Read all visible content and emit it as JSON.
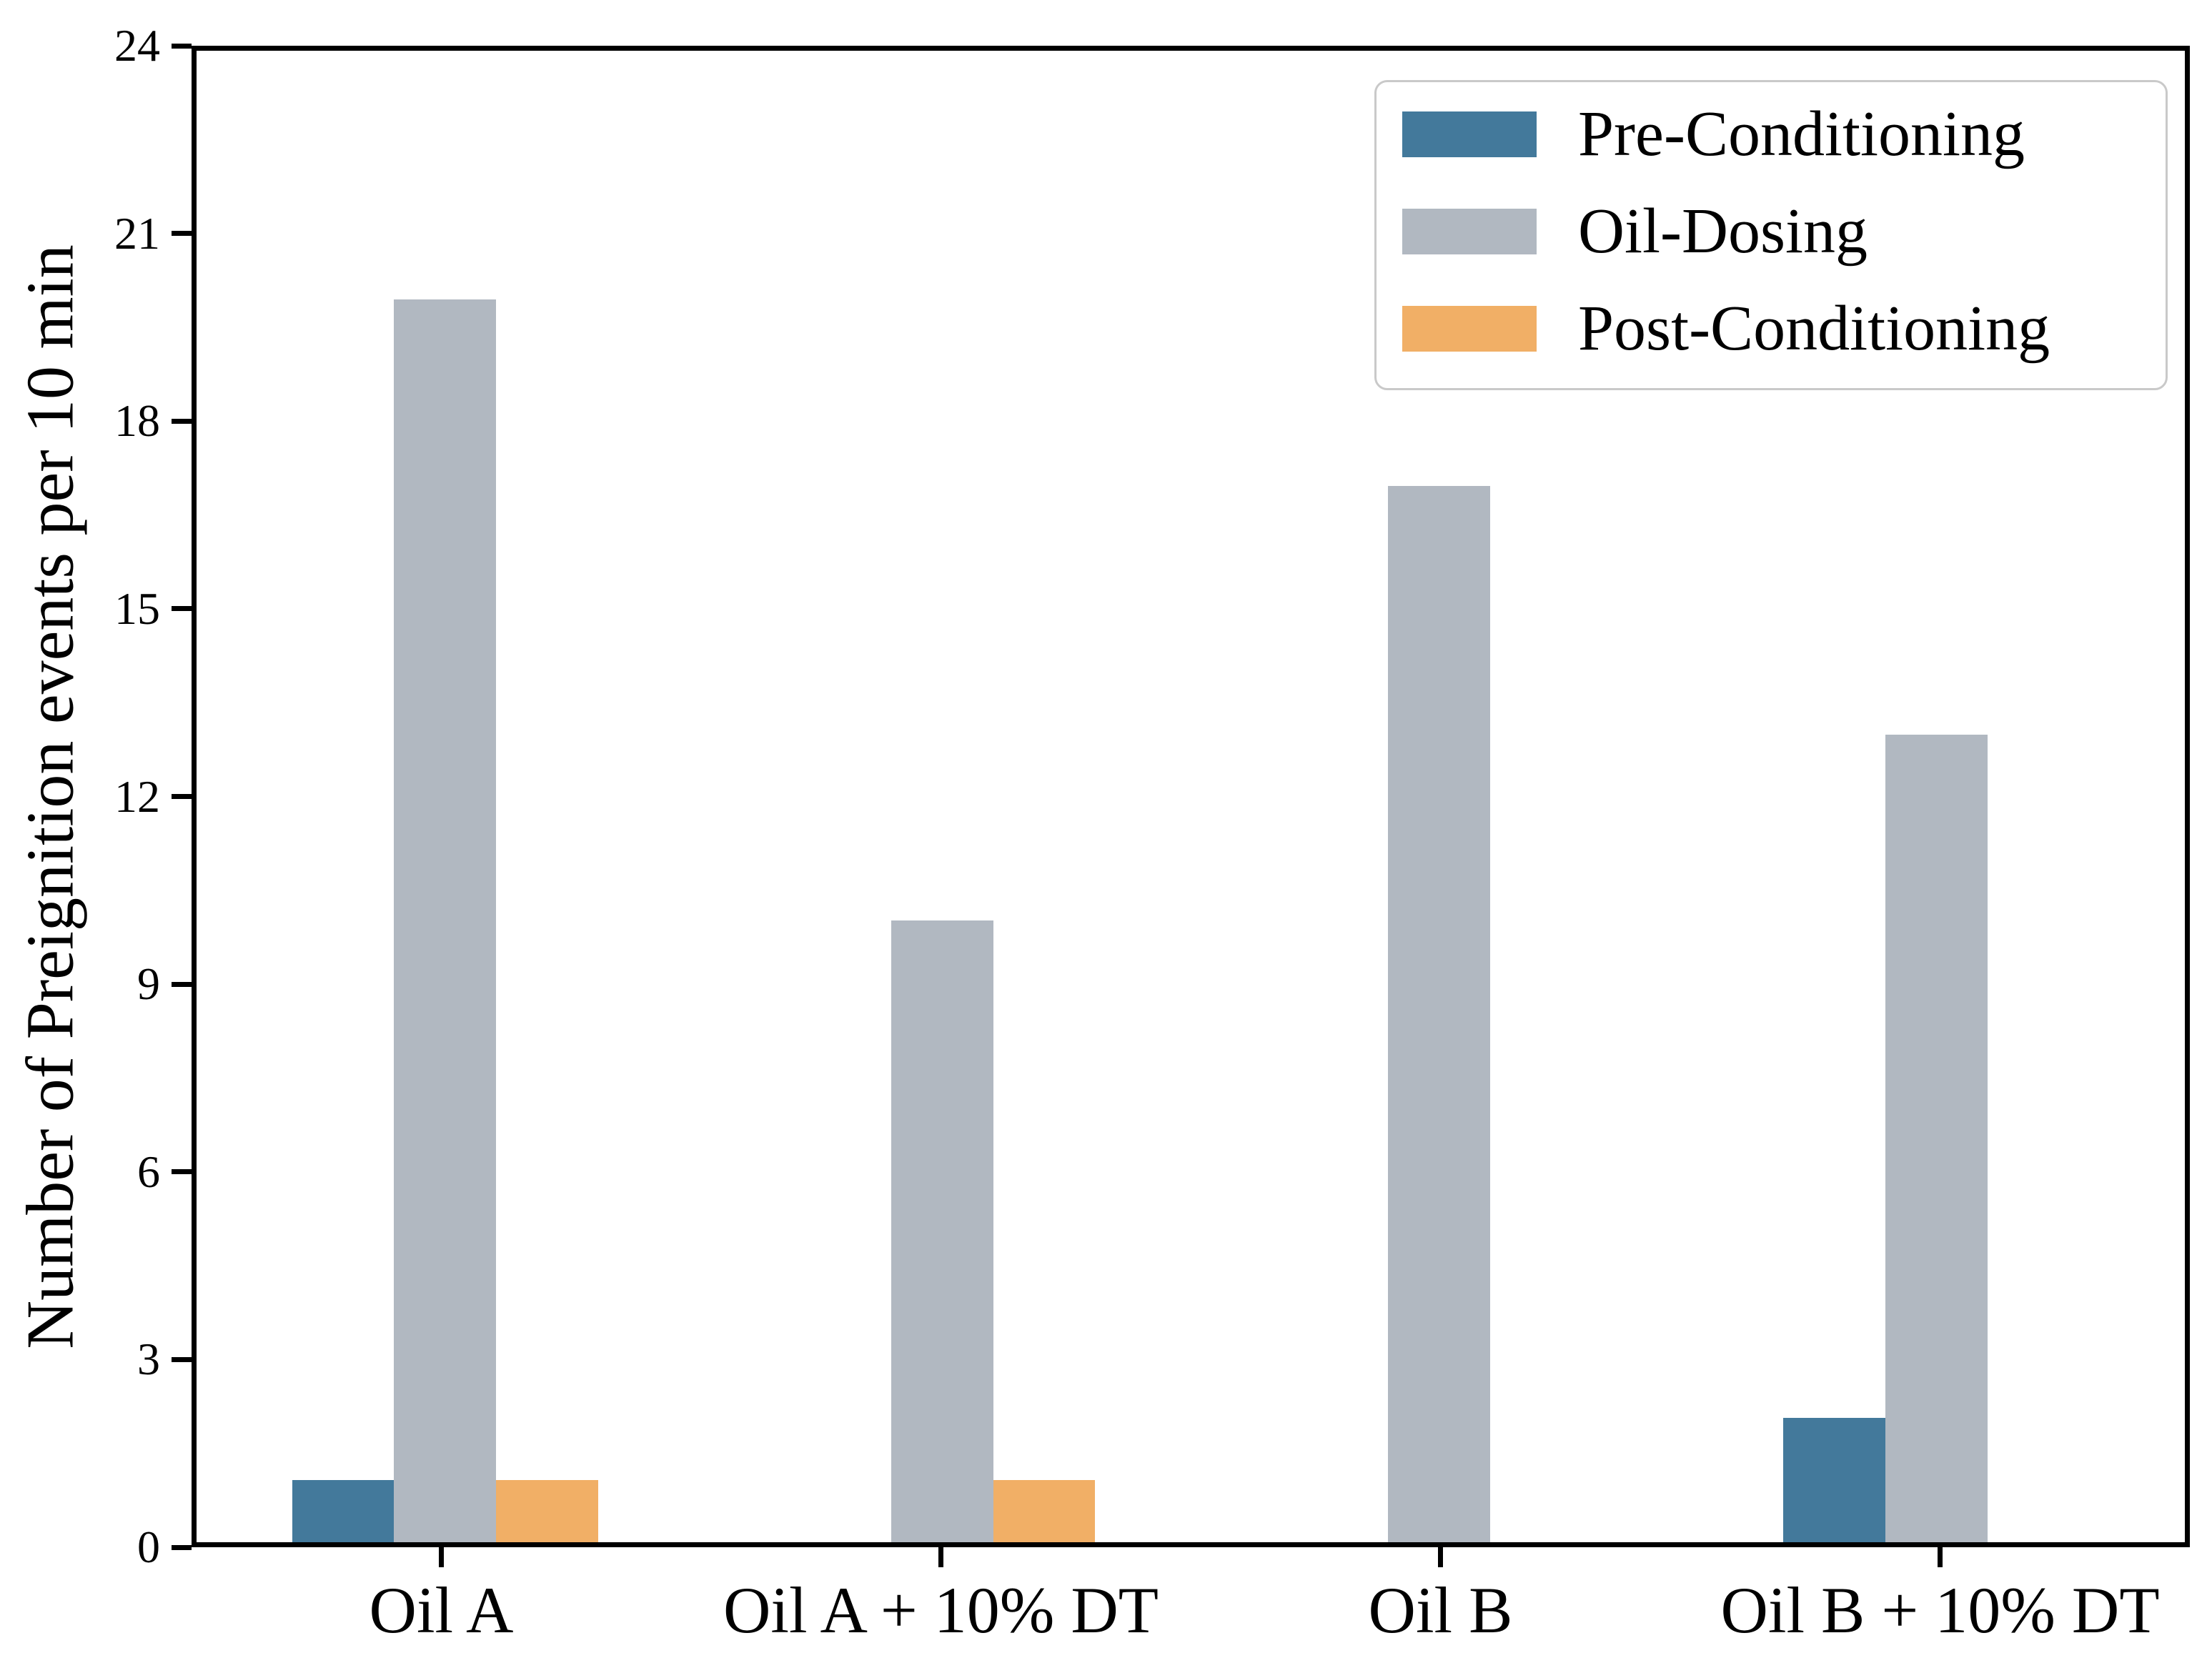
{
  "chart_data": {
    "type": "bar",
    "title": "",
    "xlabel": "",
    "ylabel": "Number of Preignition events per 10 min",
    "categories": [
      "Oil A",
      "Oil A + 10% DT",
      "Oil B",
      "Oil B + 10% DT"
    ],
    "series": [
      {
        "name": "Pre-Conditioning",
        "color": "#43799b",
        "values": [
          1,
          0,
          0,
          2
        ]
      },
      {
        "name": "Oil-Dosing",
        "color": "#b1b8c1",
        "values": [
          20,
          10,
          17,
          13
        ]
      },
      {
        "name": "Post-Conditioning",
        "color": "#f1af66",
        "values": [
          1,
          1,
          0,
          0
        ]
      }
    ],
    "ylim": [
      0,
      24
    ],
    "yticks": [
      0,
      3,
      6,
      9,
      12,
      15,
      18,
      21,
      24
    ],
    "grid": false,
    "legend_position": "upper right"
  },
  "colors": {
    "axis": "#000000",
    "background": "#ffffff",
    "legend_border": "#c9c9c9"
  }
}
